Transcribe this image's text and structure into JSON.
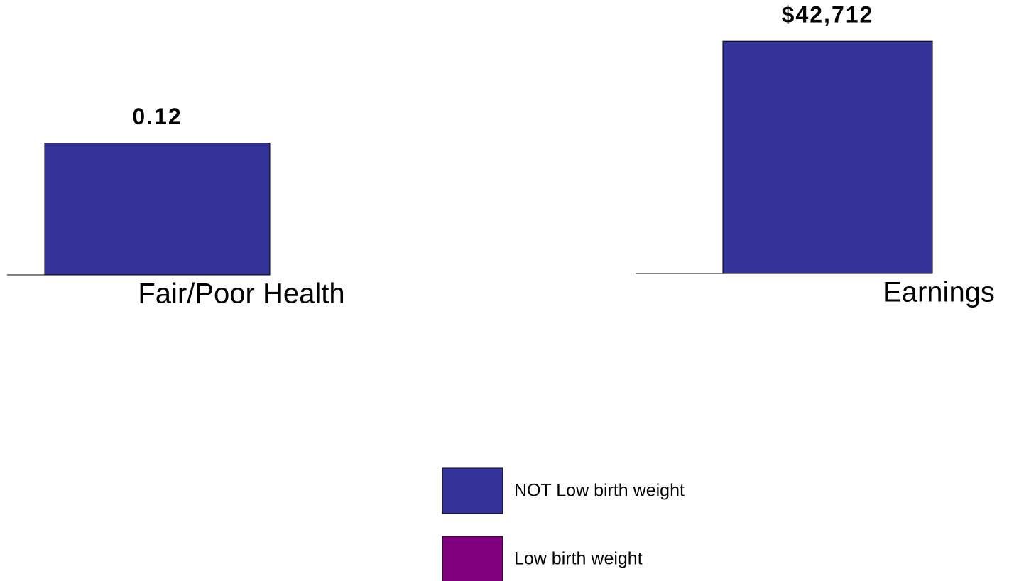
{
  "chart_data": [
    {
      "type": "bar",
      "categories": [
        "Fair/Poor Health"
      ],
      "ylim": [
        0,
        0.2
      ],
      "series": [
        {
          "name": "NOT Low birth weight",
          "color": "#333399",
          "values": [
            0.12
          ]
        },
        {
          "name": "Low birth weight",
          "color": "#800080",
          "values": [
            null
          ]
        }
      ]
    },
    {
      "type": "bar",
      "categories": [
        "Earnings"
      ],
      "ylim": [
        0,
        43000
      ],
      "series": [
        {
          "values": [
            42712
          ],
          "value_labels": [
            "$42,712"
          ]
        },
        {
          "values": [
            null
          ]
        }
      ]
    }
  ]
}
